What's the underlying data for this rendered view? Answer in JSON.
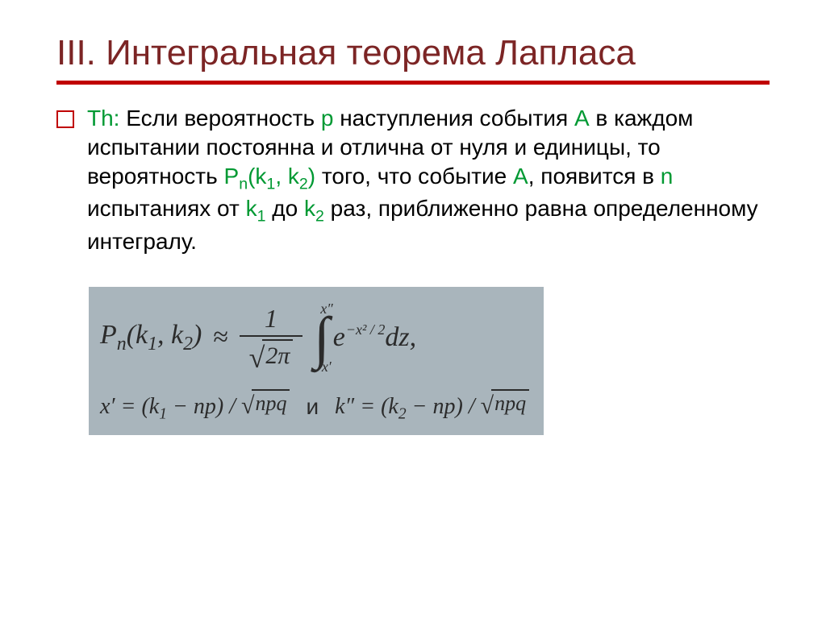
{
  "colors": {
    "title_color": "#7c2525",
    "accent_color": "#c00000",
    "highlight_color": "#009933",
    "body_color": "#000000",
    "formula_bg": "#a9b5bc",
    "formula_text": "#2b2b2b",
    "page_bg": "#ffffff"
  },
  "title": "III. Интегральная теорема Лапласа",
  "body": {
    "th_label": "Th:",
    "t1": " Если вероятность ",
    "p": "p",
    "t2": " наступления события ",
    "A1": "А",
    "t3": " в каждом испытании постоянна и отлична от нуля и единицы, то вероятность ",
    "Pn": "P",
    "n_sub": "n",
    "paren_open": "(k",
    "one": "1",
    "comma_k": ", k",
    "two": "2",
    "paren_close": ")",
    "t4": " того, что событие ",
    "A2": "А",
    "t5": ", появится в ",
    "n2": "n",
    "t6": " испытаниях от ",
    "k1": "k",
    "k1_sub": "1",
    "t7": " до ",
    "k2": "k",
    "k2_sub": "2",
    "t8": " раз, приближенно равна определенному интегралу."
  },
  "formula": {
    "lhs_P": "P",
    "lhs_n": "n",
    "lhs_open": "(k",
    "lhs_1": "1",
    "lhs_comma": ", k",
    "lhs_2": "2",
    "lhs_close": ")",
    "approx": "≈",
    "frac_num": "1",
    "frac_den_2pi": "2π",
    "int_upper": "x″",
    "int_symbol": "∫",
    "int_lower": "x′",
    "integr_e": "e",
    "integr_exp": "−x² / 2",
    "integr_dz": "dz,",
    "row2_x1": "x′ = (k",
    "row2_x1_sub": "1",
    "row2_x1_rest": " − np) / ",
    "row2_sqrt1": "npq",
    "and": "и",
    "row2_k2": "k″ = (k",
    "row2_k2_sub": "2",
    "row2_k2_rest": " − np) / ",
    "row2_sqrt2": "npq"
  }
}
